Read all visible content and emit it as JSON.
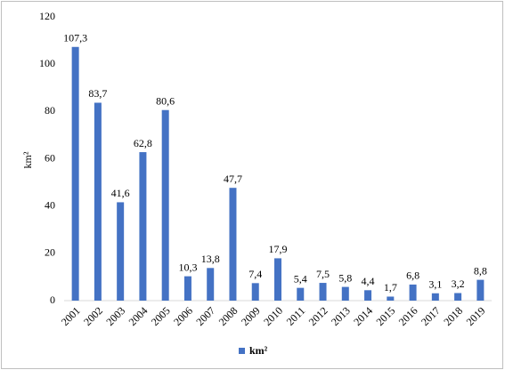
{
  "chart_data": {
    "type": "bar",
    "y_label": "km²",
    "legend": "km²",
    "color": "#4472c4",
    "categories": [
      "2001",
      "2002",
      "2003",
      "2004",
      "2005",
      "2006",
      "2007",
      "2008",
      "2009",
      "2010",
      "2011",
      "2012",
      "2013",
      "2014",
      "2015",
      "2016",
      "2017",
      "2018",
      "2019"
    ],
    "values": [
      107.3,
      83.7,
      41.6,
      62.8,
      80.6,
      10.3,
      13.8,
      47.7,
      7.4,
      17.9,
      5.4,
      7.5,
      5.8,
      4.4,
      1.7,
      6.8,
      3.1,
      3.2,
      8.8
    ],
    "value_labels": [
      "107,3",
      "83,7",
      "41,6",
      "62,8",
      "80,6",
      "10,3",
      "13,8",
      "47,7",
      "7,4",
      "17,9",
      "5,4",
      "7,5",
      "5,8",
      "4,4",
      "1,7",
      "6,8",
      "3,1",
      "3,2",
      "8,8"
    ],
    "ylim": [
      0,
      120
    ],
    "yticks": [
      0,
      20,
      40,
      60,
      80,
      100,
      120
    ],
    "grid": false
  }
}
